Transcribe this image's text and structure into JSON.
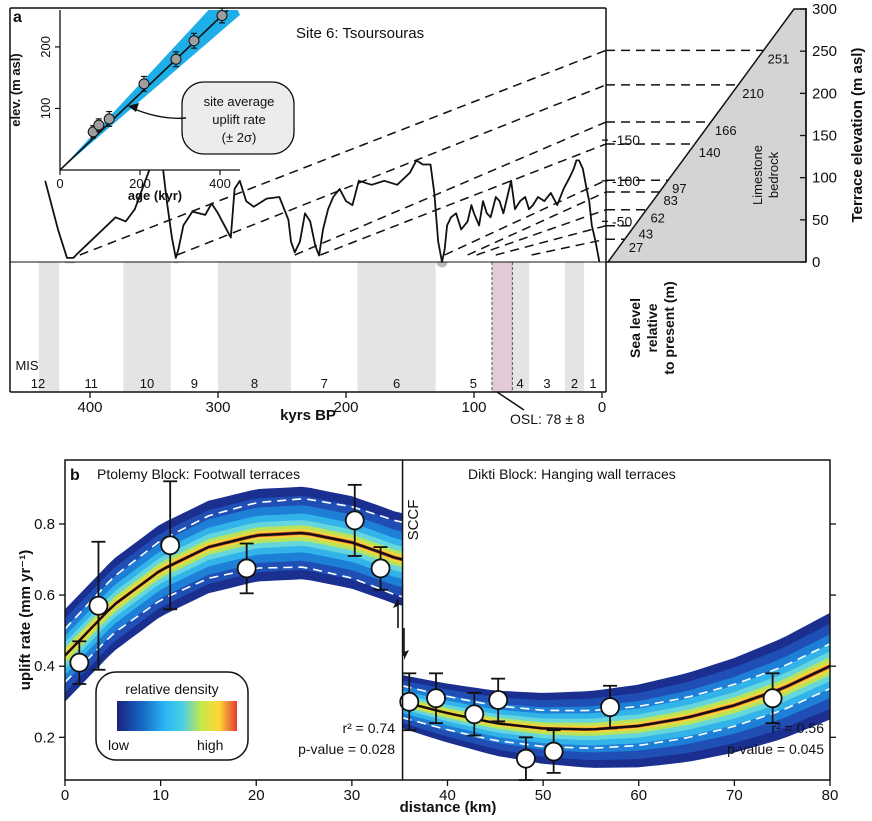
{
  "panel_a": {
    "letter": "a",
    "title": "Site 6: Tsoursouras",
    "inset": {
      "xlabel": "age (kyr)",
      "ylabel": "elev. (m asl)",
      "xticks": [
        "0",
        "200",
        "400"
      ],
      "yticks": [
        "100",
        "200"
      ],
      "callout_line1": "site average",
      "callout_line2": "uplift rate",
      "callout_line3": "(± 2σ)",
      "band_color": "#1eaee8"
    },
    "terrace": {
      "ylabel": "Terrace elevation (m asl)",
      "yticks": [
        "0",
        "50",
        "100",
        "150",
        "200",
        "250",
        "300"
      ],
      "bedrock_line1": "Limestone",
      "bedrock_line2": "bedrock",
      "fill_color": "#d4d4d4"
    },
    "sea": {
      "xlabel": "kyrs BP",
      "ylabel_line1": "Sea level",
      "ylabel_line2": "relative",
      "ylabel_line3": "to present (m)",
      "xticks": [
        "400",
        "300",
        "200",
        "100",
        "0"
      ],
      "yticks": [
        "-50",
        "-100",
        "-150"
      ],
      "mis_prefix": "MIS",
      "mis_numbers": [
        "12",
        "11",
        "10",
        "9",
        "8",
        "7",
        "6",
        "5",
        "4",
        "3",
        "2",
        "1"
      ],
      "osl_label": "OSL: 78 ± 8"
    }
  },
  "panel_b": {
    "letter": "b",
    "left_title": "Ptolemy Block: Footwall terraces",
    "right_title": "Dikti Block: Hanging wall terraces",
    "fault_label": "SCCF",
    "ylabel": "uplift rate (mm yr⁻¹)",
    "xlabel": "distance (km)",
    "xticks": [
      "0",
      "10",
      "20",
      "30",
      "40",
      "50",
      "60",
      "70",
      "80"
    ],
    "yticks": [
      "0.2",
      "0.4",
      "0.6",
      "0.8"
    ],
    "left_r2": "r² = 0.74",
    "left_p": "p-value = 0.028",
    "right_r2": "r² = 0.56",
    "right_p": "p-value = 0.045",
    "legend_title": "relative density",
    "legend_low": "low",
    "legend_high": "high"
  },
  "chart_data": [
    {
      "type": "scatter",
      "panel": "a-inset",
      "xlabel": "age (kyr)",
      "ylabel": "elev. (m asl)",
      "xlim": [
        0,
        450
      ],
      "ylim": [
        0,
        260
      ],
      "x": [
        83,
        97,
        123,
        210,
        290,
        335,
        405
      ],
      "y": [
        62,
        73,
        83,
        140,
        180,
        210,
        251
      ],
      "yerr": [
        10,
        10,
        12,
        12,
        12,
        12,
        12
      ],
      "fit": {
        "slope": 0.62
      }
    },
    {
      "type": "line",
      "panel": "a-terrace",
      "ylabel": "Terrace elevation (m asl)",
      "ylim": [
        0,
        300
      ],
      "terrace_labels": [
        "27",
        "43",
        "62",
        "83",
        "97",
        "140",
        "166",
        "210",
        "251"
      ],
      "terrace_elevations": [
        27,
        43,
        62,
        83,
        97,
        140,
        166,
        210,
        251
      ]
    },
    {
      "type": "line",
      "panel": "a-sealevel",
      "xlabel": "kyrs BP",
      "ylabel": "Sea level relative to present (m)",
      "xlim": [
        440,
        0
      ],
      "ylim": [
        -160,
        0
      ],
      "x": [
        435,
        425,
        418,
        413,
        410,
        400,
        390,
        380,
        372,
        365,
        358,
        352,
        347,
        343,
        340,
        336,
        333,
        331,
        327,
        320,
        310,
        305,
        300,
        295,
        290,
        287,
        283,
        280,
        278,
        272,
        262,
        252,
        245,
        243,
        240,
        236,
        232,
        228,
        224,
        221,
        218,
        214,
        210,
        205,
        200,
        195,
        190,
        180,
        170,
        160,
        150,
        145,
        140,
        134,
        131,
        128,
        125,
        123,
        121,
        118,
        114,
        110,
        105,
        102,
        100,
        96,
        93,
        90,
        87,
        83,
        80,
        77,
        74,
        71,
        68,
        64,
        60,
        57,
        54,
        50,
        45,
        40,
        35,
        30,
        25,
        22,
        20,
        18,
        15,
        12,
        10,
        8,
        5,
        2
      ],
      "y": [
        -100,
        -40,
        -5,
        -5,
        -10,
        -25,
        -40,
        -55,
        -50,
        -65,
        -95,
        -120,
        -130,
        -115,
        -75,
        -30,
        -5,
        -15,
        -45,
        -62,
        -58,
        -72,
        -60,
        -45,
        -30,
        -90,
        -100,
        -85,
        -75,
        -68,
        -78,
        -80,
        -52,
        -25,
        -12,
        -25,
        -60,
        -50,
        -20,
        -8,
        -40,
        -65,
        -80,
        -90,
        -75,
        -70,
        -100,
        -95,
        -100,
        -95,
        -110,
        -125,
        -120,
        -120,
        -85,
        -25,
        0,
        -15,
        -45,
        -55,
        -60,
        -40,
        -50,
        -70,
        -60,
        -45,
        -75,
        -60,
        -55,
        -80,
        -75,
        -60,
        -80,
        -100,
        -65,
        -75,
        -80,
        -65,
        -70,
        -80,
        -75,
        -85,
        -70,
        -90,
        -105,
        -115,
        -125,
        -125,
        -115,
        -90,
        -75,
        -45,
        -25,
        0
      ],
      "mis_boundaries_kyr": [
        424,
        374,
        337,
        300,
        243,
        191,
        130,
        71,
        57,
        29,
        14
      ]
    },
    {
      "type": "scatter",
      "panel": "b",
      "xlabel": "distance (km)",
      "ylabel": "uplift rate (mm yr⁻¹)",
      "xlim": [
        0,
        80
      ],
      "ylim": [
        0.08,
        0.98
      ],
      "fault_km": 35.3,
      "series": [
        {
          "name": "Ptolemy Block: Footwall terraces",
          "x": [
            1.5,
            3.5,
            11,
            19,
            30.3,
            33
          ],
          "y": [
            0.41,
            0.57,
            0.74,
            0.675,
            0.81,
            0.675
          ],
          "yerr": [
            0.06,
            0.18,
            0.18,
            0.07,
            0.1,
            0.06
          ],
          "fit": [
            [
              0,
              0.43
            ],
            [
              5,
              0.57
            ],
            [
              10,
              0.67
            ],
            [
              15,
              0.735
            ],
            [
              20,
              0.768
            ],
            [
              25,
              0.775
            ],
            [
              30,
              0.748
            ],
            [
              33,
              0.72
            ],
            [
              35,
              0.7
            ]
          ]
        },
        {
          "name": "Dikti Block: Hanging wall terraces",
          "x": [
            36,
            38.8,
            42.8,
            45.3,
            48.2,
            51.1,
            57,
            74
          ],
          "y": [
            0.3,
            0.31,
            0.265,
            0.305,
            0.14,
            0.16,
            0.285,
            0.31
          ],
          "yerr": [
            0.08,
            0.07,
            0.06,
            0.06,
            0.06,
            0.06,
            0.06,
            0.07
          ],
          "fit": [
            [
              35.3,
              0.3
            ],
            [
              40,
              0.268
            ],
            [
              45,
              0.24
            ],
            [
              50,
              0.225
            ],
            [
              55,
              0.222
            ],
            [
              60,
              0.232
            ],
            [
              65,
              0.255
            ],
            [
              70,
              0.29
            ],
            [
              75,
              0.337
            ],
            [
              80,
              0.4
            ]
          ]
        }
      ]
    }
  ]
}
